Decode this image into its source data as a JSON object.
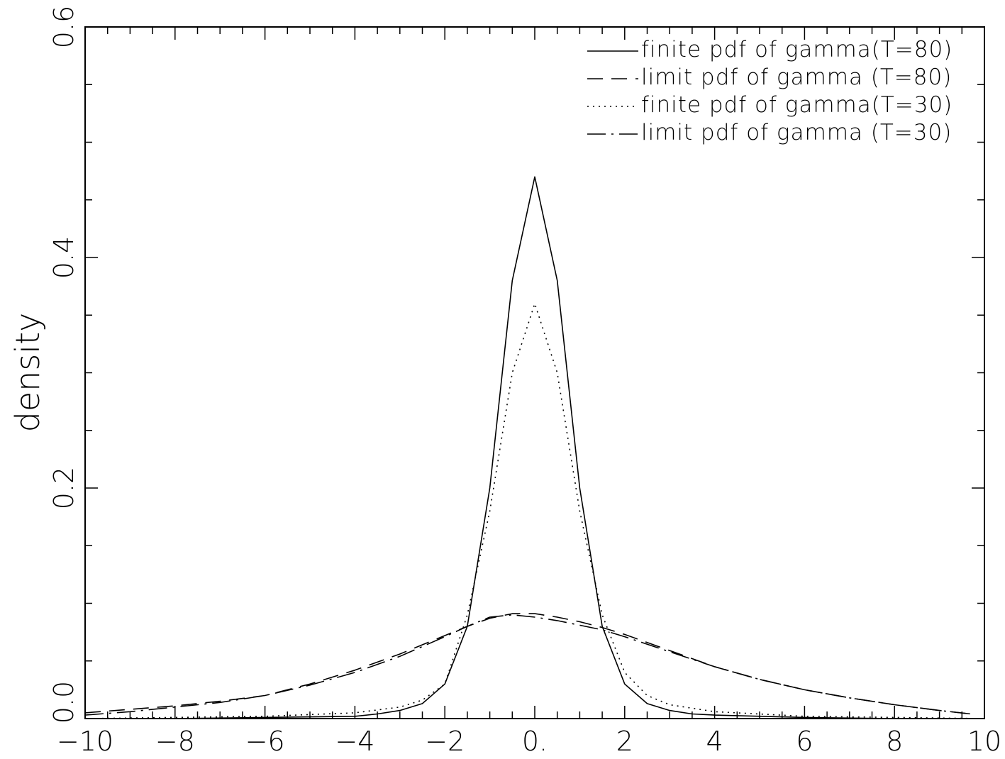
{
  "chart_data": {
    "type": "line",
    "title": "",
    "xlabel": "",
    "ylabel": "density",
    "xlim": [
      -10,
      10
    ],
    "ylim": [
      0.0,
      0.6
    ],
    "grid": false,
    "legend_position": "top-right",
    "x_tick_labels": [
      "−10",
      "−8",
      "−6",
      "−4",
      "−2",
      "0.",
      "2",
      "4",
      "6",
      "8",
      "10"
    ],
    "x_tick_values": [
      -10,
      -8,
      -6,
      -4,
      -2,
      0,
      2,
      4,
      6,
      8,
      10
    ],
    "y_tick_labels": [
      "0.0",
      "0.2",
      "0.4",
      "0.6"
    ],
    "y_tick_values": [
      0.0,
      0.2,
      0.4,
      0.6
    ],
    "series": [
      {
        "name": "finite pdf of gamma(T=80)",
        "style": "solid",
        "x": [
          -10,
          -8,
          -6,
          -4,
          -3.5,
          -3,
          -2.5,
          -2,
          -1.5,
          -1,
          -0.5,
          0,
          0.5,
          1,
          1.5,
          2,
          2.5,
          3,
          3.5,
          4,
          6,
          8,
          10
        ],
        "y": [
          0.0,
          0.0,
          0.001,
          0.002,
          0.004,
          0.007,
          0.013,
          0.03,
          0.08,
          0.2,
          0.38,
          0.47,
          0.38,
          0.2,
          0.08,
          0.03,
          0.013,
          0.007,
          0.004,
          0.003,
          0.001,
          0.0,
          0.0
        ]
      },
      {
        "name": "limit pdf of gamma (T=80)",
        "style": "dashed",
        "x": [
          -10,
          -9,
          -8,
          -7,
          -6,
          -5,
          -4,
          -3,
          -2,
          -1.5,
          -1,
          -0.5,
          0,
          0.5,
          1,
          1.5,
          2,
          3,
          4,
          5,
          6,
          7,
          8,
          9,
          9.7
        ],
        "y": [
          0.005,
          0.008,
          0.011,
          0.015,
          0.02,
          0.03,
          0.042,
          0.056,
          0.072,
          0.08,
          0.087,
          0.091,
          0.091,
          0.088,
          0.084,
          0.079,
          0.073,
          0.059,
          0.045,
          0.034,
          0.025,
          0.018,
          0.012,
          0.007,
          0.004
        ]
      },
      {
        "name": "finite pdf of gamma(T=30)",
        "style": "dotted",
        "x": [
          -10,
          -6,
          -4,
          -3,
          -2.5,
          -2,
          -1.5,
          -1,
          -0.5,
          0,
          0.5,
          1,
          1.5,
          2,
          2.5,
          3,
          4,
          6,
          10
        ],
        "y": [
          0.0,
          0.002,
          0.005,
          0.01,
          0.016,
          0.03,
          0.09,
          0.18,
          0.3,
          0.36,
          0.3,
          0.18,
          0.09,
          0.04,
          0.02,
          0.012,
          0.006,
          0.002,
          0.0
        ]
      },
      {
        "name": "limit pdf of gamma (T=30)",
        "style": "dash-dot",
        "x": [
          -10,
          -9,
          -8,
          -7,
          -6,
          -5,
          -4,
          -3,
          -2,
          -1.5,
          -1,
          -0.5,
          0,
          0.5,
          1,
          1.5,
          2,
          3,
          4,
          5,
          6,
          7,
          8,
          9,
          9.7
        ],
        "y": [
          0.003,
          0.006,
          0.01,
          0.014,
          0.02,
          0.029,
          0.04,
          0.054,
          0.071,
          0.08,
          0.088,
          0.09,
          0.088,
          0.085,
          0.081,
          0.077,
          0.071,
          0.058,
          0.045,
          0.034,
          0.025,
          0.018,
          0.012,
          0.007,
          0.004
        ]
      }
    ]
  }
}
